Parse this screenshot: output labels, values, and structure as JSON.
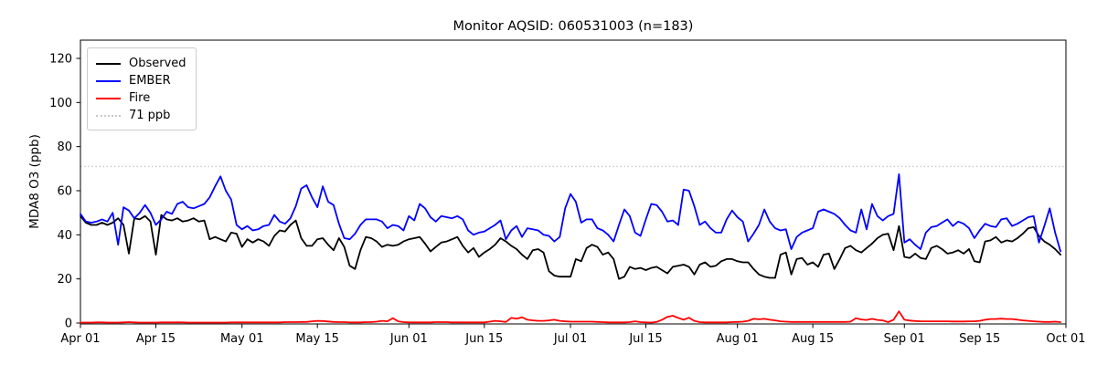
{
  "title": "Monitor AQSID: 060531003 (n=183)",
  "chart_data": {
    "type": "line",
    "title": "Monitor AQSID: 060531003 (n=183)",
    "xlabel": "",
    "ylabel": "MDA8 O3 (ppb)",
    "n_points": 183,
    "grid": false,
    "y_ticks": [
      0,
      20,
      40,
      60,
      80,
      100,
      120
    ],
    "ylim": [
      0,
      128
    ],
    "x_ticks": [
      {
        "label": "Apr 01",
        "day": 0
      },
      {
        "label": "Apr 15",
        "day": 14
      },
      {
        "label": "May 01",
        "day": 30
      },
      {
        "label": "May 15",
        "day": 44
      },
      {
        "label": "Jun 01",
        "day": 61
      },
      {
        "label": "Jun 15",
        "day": 75
      },
      {
        "label": "Jul 01",
        "day": 91
      },
      {
        "label": "Jul 15",
        "day": 105
      },
      {
        "label": "Aug 01",
        "day": 122
      },
      {
        "label": "Aug 15",
        "day": 136
      },
      {
        "label": "Sep 01",
        "day": 153
      },
      {
        "label": "Sep 15",
        "day": 167
      },
      {
        "label": "Oct 01",
        "day": 183
      }
    ],
    "threshold": {
      "label": "71 ppb",
      "value": 71,
      "color": "#c8c8c8",
      "style": "dotted"
    },
    "legend": {
      "position": "upper-left",
      "entries": [
        "Observed",
        "EMBER",
        "Fire",
        "71 ppb"
      ]
    },
    "series": [
      {
        "name": "Observed",
        "color": "#000000",
        "style": "solid",
        "values": [
          48.5,
          45.5,
          44.5,
          44.5,
          45.5,
          44.5,
          45.5,
          47.5,
          44.5,
          31.5,
          47.5,
          47,
          48.5,
          46,
          31,
          49,
          47,
          46.5,
          47.5,
          46,
          46.5,
          47.5,
          46,
          46.5,
          38,
          39,
          38,
          37,
          41,
          40.5,
          34.5,
          38,
          36.5,
          38,
          37,
          35,
          39.5,
          42,
          41.5,
          44.5,
          46.5,
          38.5,
          35,
          35,
          38,
          38.5,
          35.5,
          33,
          38.5,
          34.5,
          26,
          24.5,
          33,
          39,
          38.5,
          37,
          34.5,
          35.5,
          35,
          35.5,
          37,
          38,
          38.5,
          39,
          36,
          32.5,
          34.5,
          36.5,
          37,
          38,
          39,
          35,
          32,
          34,
          30,
          32,
          33.5,
          35.5,
          38.5,
          37,
          35,
          33.5,
          31,
          29,
          33,
          33.5,
          32,
          23.5,
          21.5,
          21,
          21,
          21,
          29,
          28,
          34,
          35.5,
          34.5,
          31,
          32,
          29,
          20,
          21,
          25.5,
          24.5,
          25,
          24,
          25,
          25.5,
          24,
          22.5,
          25.5,
          26,
          26.5,
          25.5,
          22,
          26.5,
          27.5,
          25.5,
          26,
          28,
          29,
          29,
          28,
          27.5,
          27.5,
          24.5,
          22,
          21,
          20.5,
          20.5,
          31,
          32,
          22,
          29,
          29.5,
          26.5,
          27.5,
          25.5,
          31,
          31.5,
          24.5,
          29,
          34,
          35,
          33,
          32,
          34,
          36,
          38.5,
          40,
          40.5,
          33,
          44,
          30,
          29.5,
          31.5,
          29.5,
          29,
          34,
          35,
          33.5,
          31.5,
          32,
          33,
          31.5,
          33.5,
          28,
          27.5,
          37,
          37.5,
          39,
          36.5,
          37.5,
          37,
          38.5,
          40.5,
          43,
          43.5,
          39.5,
          37,
          35.5,
          33.5,
          31
        ]
      },
      {
        "name": "EMBER",
        "color": "#0000ff",
        "style": "solid",
        "values": [
          49.5,
          46,
          45.5,
          46,
          47,
          46,
          50,
          35.5,
          52.5,
          51,
          47.5,
          50,
          53.5,
          50,
          44.5,
          47,
          50.5,
          49.5,
          54,
          55,
          52.5,
          52,
          53,
          54,
          57,
          62,
          66.5,
          60,
          56,
          44.5,
          42.5,
          44,
          42,
          42.5,
          44,
          44.5,
          49,
          46,
          45,
          47.5,
          53,
          61,
          62.5,
          57,
          52.5,
          62,
          55,
          53.5,
          45,
          38.5,
          38,
          40.5,
          44.5,
          47,
          47,
          47,
          46,
          43,
          44.5,
          44,
          42,
          48.5,
          46.5,
          54,
          52,
          48,
          46,
          48.5,
          48,
          47.5,
          48.5,
          47,
          42,
          40,
          41,
          41.5,
          43,
          44.5,
          46.5,
          38,
          42,
          44,
          39,
          43,
          42.5,
          42,
          40,
          39.5,
          37,
          39,
          52,
          58.5,
          55,
          45.5,
          47,
          47,
          43,
          42,
          40,
          37,
          44.5,
          51.5,
          48.5,
          41,
          39.5,
          47,
          54,
          53.5,
          50.5,
          46,
          46.5,
          44.5,
          60.5,
          60,
          53,
          44.5,
          46,
          43,
          41,
          41,
          47,
          51,
          48,
          46,
          37,
          40.5,
          44.5,
          51.5,
          46,
          43,
          42,
          42.5,
          33.5,
          39,
          41,
          42,
          43,
          50.5,
          51.5,
          50.5,
          49.5,
          47.5,
          44.5,
          42,
          41,
          51.5,
          42.5,
          54,
          48.5,
          46.5,
          48.5,
          49.5,
          67.5,
          36.5,
          38,
          35.5,
          33.5,
          41,
          43.5,
          44,
          45.5,
          47,
          44,
          46,
          45,
          43,
          38.5,
          42,
          45,
          44,
          43.5,
          47,
          47.5,
          44,
          45,
          46.5,
          48,
          48.5,
          36.5,
          44,
          52,
          41,
          32.5
        ]
      },
      {
        "name": "Fire",
        "color": "#ff0000",
        "style": "solid",
        "values": [
          0.2,
          0.2,
          0.2,
          0.3,
          0.3,
          0.2,
          0.2,
          0.2,
          0.3,
          0.4,
          0.3,
          0.2,
          0.2,
          0.2,
          0.2,
          0.3,
          0.3,
          0.3,
          0.3,
          0.3,
          0.2,
          0.2,
          0.2,
          0.2,
          0.2,
          0.2,
          0.2,
          0.2,
          0.3,
          0.3,
          0.3,
          0.3,
          0.3,
          0.3,
          0.3,
          0.3,
          0.3,
          0.3,
          0.4,
          0.4,
          0.4,
          0.5,
          0.5,
          0.8,
          1.0,
          0.9,
          0.7,
          0.5,
          0.4,
          0.4,
          0.3,
          0.3,
          0.3,
          0.4,
          0.4,
          0.6,
          1.0,
          0.8,
          2.2,
          0.8,
          0.4,
          0.3,
          0.3,
          0.3,
          0.3,
          0.3,
          0.4,
          0.4,
          0.4,
          0.3,
          0.3,
          0.3,
          0.3,
          0.3,
          0.3,
          0.3,
          0.6,
          1.0,
          0.8,
          0.5,
          2.3,
          2.0,
          2.6,
          1.5,
          1.2,
          1.0,
          1.0,
          1.2,
          1.5,
          1.0,
          0.8,
          0.6,
          0.6,
          0.6,
          0.6,
          0.6,
          0.5,
          0.4,
          0.3,
          0.3,
          0.3,
          0.3,
          0.4,
          0.8,
          0.4,
          0.3,
          0.2,
          0.5,
          1.5,
          2.8,
          3.3,
          2.3,
          1.5,
          2.4,
          1.0,
          0.4,
          0.3,
          0.3,
          0.3,
          0.3,
          0.3,
          0.4,
          0.5,
          0.6,
          1.0,
          1.9,
          1.7,
          1.9,
          1.5,
          1.2,
          0.8,
          0.6,
          0.5,
          0.5,
          0.5,
          0.5,
          0.5,
          0.5,
          0.5,
          0.5,
          0.5,
          0.5,
          0.5,
          0.6,
          2.2,
          1.6,
          1.4,
          1.9,
          1.4,
          1.2,
          0.4,
          1.5,
          5.3,
          1.5,
          1.1,
          0.9,
          0.8,
          0.8,
          0.8,
          0.8,
          0.8,
          0.8,
          0.7,
          0.7,
          0.7,
          0.8,
          0.8,
          1.0,
          1.5,
          1.8,
          1.8,
          2.0,
          1.8,
          1.8,
          1.5,
          1.2,
          1.0,
          0.8,
          0.6,
          0.5,
          0.5,
          0.6,
          0.4
        ]
      }
    ]
  }
}
